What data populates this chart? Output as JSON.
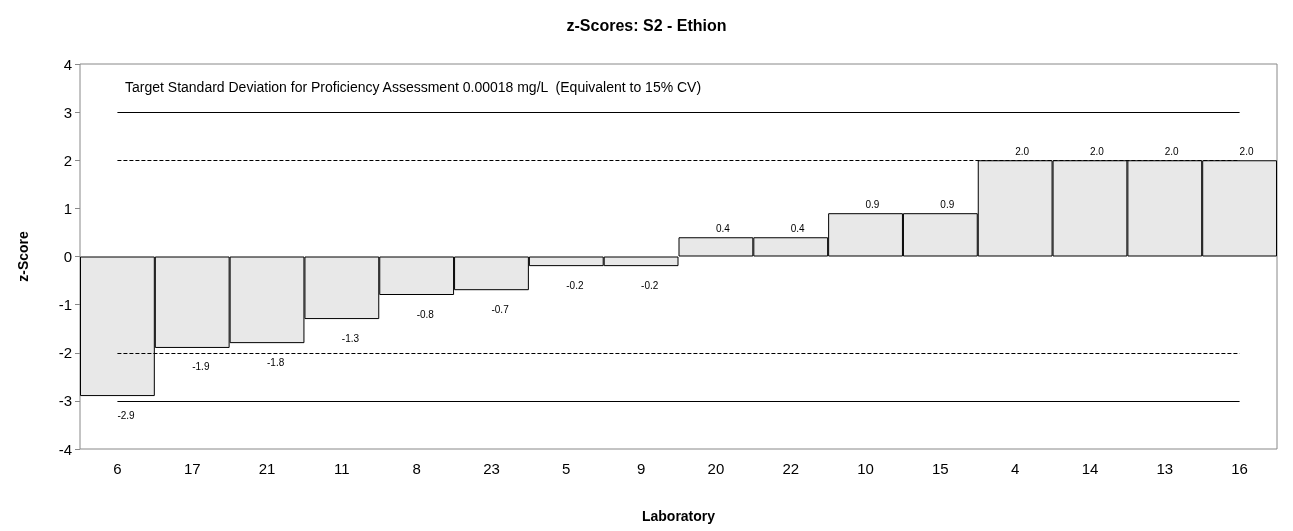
{
  "chart_data": {
    "type": "bar",
    "title": "z-Scores: S2 - Ethion",
    "xlabel": "Laboratory",
    "ylabel": "z-Score",
    "categories": [
      "6",
      "17",
      "21",
      "11",
      "8",
      "23",
      "5",
      "9",
      "20",
      "22",
      "10",
      "15",
      "4",
      "14",
      "13",
      "16"
    ],
    "values": [
      -2.9,
      -1.9,
      -1.8,
      -1.3,
      -0.8,
      -0.7,
      -0.2,
      -0.2,
      0.4,
      0.4,
      0.9,
      0.9,
      2.0,
      2.0,
      2.0,
      2.0
    ],
    "value_labels": [
      "-2.9",
      "-1.9",
      "-1.8",
      "-1.3",
      "-0.8",
      "-0.7",
      "-0.2",
      "-0.2",
      "0.4",
      "0.4",
      "0.9",
      "0.9",
      "2.0",
      "2.0",
      "2.0",
      "2.0"
    ],
    "color": "#e8e8e8",
    "ylim": [
      -4,
      4
    ],
    "yticks": [
      -4,
      -3,
      -2,
      -1,
      0,
      1,
      2,
      3,
      4
    ],
    "grid": false,
    "ref_lines": [
      {
        "axis": "y",
        "value": 3,
        "color": "#000000",
        "line_style": "solid"
      },
      {
        "axis": "y",
        "value": 2,
        "color": "#000000",
        "line_style": "dashed"
      },
      {
        "axis": "y",
        "value": -2,
        "color": "#000000",
        "line_style": "dashed"
      },
      {
        "axis": "y",
        "value": -3,
        "color": "#000000",
        "line_style": "solid"
      }
    ],
    "annotations": [
      "Target Standard Deviation for Proficiency Assessment 0.00018 mg/L  (Equivalent to 15% CV)"
    ]
  }
}
